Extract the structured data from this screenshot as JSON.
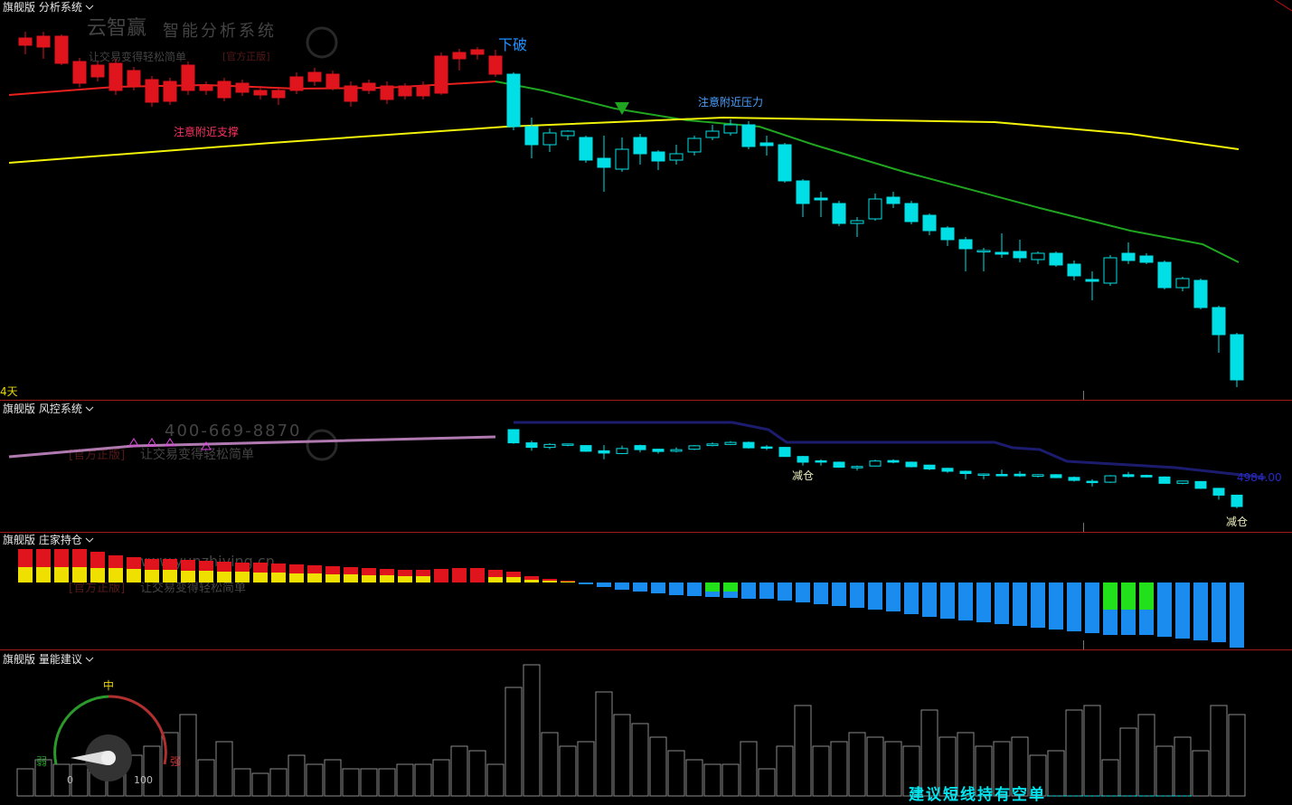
{
  "chart_data": {
    "type": "candlestick",
    "panels": {
      "main": "旗舰版 分析系统",
      "risk": "旗舰版 风控系统",
      "holding": "旗舰版 庄家持仓",
      "volume": "旗舰版 量能建议"
    },
    "period_label": "4天",
    "watermark": {
      "brand": "云智赢",
      "slogan": "智能分析系统",
      "motto": "让交易变得轻松简单",
      "tag": "[官方正版]",
      "phone": "400-669-8870",
      "site": "www.yunzhiying.cn"
    },
    "annotations": {
      "break": "下破",
      "resistance": "注意附近压力",
      "support": "注意附近支撑",
      "reduce": "减仓",
      "risk_value": "4984.00",
      "advice": "建议短线持有空单"
    },
    "gauge": {
      "mid": "中",
      "weak": "弱",
      "strong": "强",
      "min": "0",
      "max": "100"
    },
    "ylim": [
      0,
      440
    ],
    "candle_groups": [
      {
        "color": "#e0141d",
        "x0": 0,
        "hollow_up": false,
        "candles": [
          [
            390,
            405,
            380,
            398
          ],
          [
            388,
            405,
            375,
            400
          ],
          [
            370,
            402,
            368,
            400
          ],
          [
            348,
            376,
            343,
            372
          ],
          [
            355,
            372,
            350,
            368
          ],
          [
            340,
            375,
            335,
            370
          ],
          [
            345,
            366,
            340,
            362
          ],
          [
            327,
            356,
            322,
            352
          ],
          [
            328,
            354,
            324,
            350
          ],
          [
            340,
            372,
            335,
            368
          ],
          [
            340,
            350,
            335,
            345
          ],
          [
            332,
            354,
            328,
            350
          ],
          [
            338,
            352,
            334,
            348
          ],
          [
            335,
            345,
            330,
            340
          ],
          [
            332,
            344,
            324,
            340
          ],
          [
            340,
            360,
            336,
            355
          ],
          [
            350,
            365,
            345,
            360
          ],
          [
            343,
            362,
            340,
            358
          ],
          [
            328,
            350,
            322,
            345
          ],
          [
            340,
            352,
            336,
            348
          ],
          [
            330,
            350,
            325,
            345
          ],
          [
            334,
            348,
            330,
            345
          ],
          [
            334,
            350,
            330,
            345
          ],
          [
            337,
            382,
            335,
            378
          ],
          [
            375,
            386,
            362,
            382
          ],
          [
            380,
            388,
            374,
            385
          ],
          [
            358,
            385,
            355,
            378
          ]
        ]
      },
      {
        "color": "#00dfe6",
        "x0": 27,
        "hollow_up": true,
        "candles": [
          [
            358,
            360,
            296,
            300
          ],
          [
            300,
            310,
            265,
            280
          ],
          [
            280,
            298,
            272,
            293
          ],
          [
            290,
            296,
            285,
            295
          ],
          [
            288,
            290,
            260,
            263
          ],
          [
            265,
            290,
            228,
            255
          ],
          [
            253,
            288,
            250,
            275
          ],
          [
            288,
            292,
            258,
            270
          ],
          [
            272,
            274,
            252,
            262
          ],
          [
            263,
            280,
            258,
            270
          ],
          [
            272,
            290,
            268,
            287
          ],
          [
            288,
            302,
            285,
            295
          ],
          [
            293,
            308,
            290,
            302
          ],
          [
            302,
            306,
            275,
            278
          ],
          [
            282,
            290,
            268,
            279
          ],
          [
            280,
            282,
            238,
            240
          ],
          [
            240,
            242,
            200,
            215
          ],
          [
            221,
            228,
            200,
            219
          ],
          [
            215,
            218,
            190,
            193
          ],
          [
            193,
            200,
            178,
            196
          ],
          [
            198,
            226,
            196,
            220
          ],
          [
            222,
            228,
            210,
            215
          ],
          [
            215,
            218,
            192,
            195
          ],
          [
            202,
            204,
            180,
            185
          ],
          [
            188,
            190,
            168,
            175
          ],
          [
            175,
            178,
            140,
            165
          ],
          [
            162,
            166,
            140,
            163
          ],
          [
            161,
            182,
            155,
            159
          ],
          [
            162,
            175,
            150,
            155
          ],
          [
            153,
            162,
            148,
            160
          ],
          [
            160,
            162,
            145,
            147
          ],
          [
            148,
            152,
            130,
            135
          ],
          [
            131,
            140,
            108,
            129
          ],
          [
            127,
            158,
            124,
            155
          ],
          [
            160,
            172,
            148,
            152
          ],
          [
            157,
            160,
            148,
            150
          ],
          [
            150,
            152,
            120,
            122
          ],
          [
            122,
            134,
            118,
            132
          ],
          [
            130,
            132,
            98,
            100
          ],
          [
            100,
            102,
            50,
            70
          ],
          [
            70,
            72,
            12,
            20
          ]
        ]
      }
    ],
    "lines": [
      {
        "color": "#e8201e",
        "x": [
          -0.9,
          5,
          10,
          15,
          20,
          26
        ],
        "values": [
          335,
          344,
          346,
          342,
          343,
          350
        ]
      },
      {
        "color": "#1fa51f",
        "x": [
          26,
          28.6,
          32.6,
          36.6,
          40.6,
          43.6,
          48.6,
          56.1,
          61.1,
          65.1,
          67.1
        ],
        "values": [
          350,
          340,
          320,
          307,
          300,
          280,
          250,
          210,
          185,
          170,
          150
        ]
      },
      {
        "color": "#f2f20a",
        "x": [
          -0.9,
          13.6,
          26.6,
          38.6,
          53.6,
          61.1,
          67.1
        ],
        "values": [
          260,
          282,
          300,
          310,
          305,
          292,
          275
        ]
      }
    ],
    "risk_ylim": [
      0,
      145
    ],
    "risk_lines": [
      {
        "color": "#1c1c6e",
        "x": [
          27,
          39.1,
          41.1,
          42.1,
          53.6,
          54.6,
          56.1,
          57.6,
          63.6,
          68.6
        ],
        "values": [
          121,
          121,
          113,
          99,
          99,
          93,
          91,
          78,
          71,
          60
        ]
      },
      {
        "color": "#b07ab0",
        "x": [
          -0.9,
          6,
          26
        ],
        "values": [
          83,
          95,
          105
        ]
      }
    ],
    "holding_ylim": [
      -75,
      55
    ],
    "holding_series": [
      {
        "color": "#f0e000",
        "values": [
          17,
          17,
          17,
          17,
          16,
          16,
          15,
          14,
          14,
          13,
          13,
          12,
          12,
          11,
          11,
          10,
          10,
          9,
          9,
          8,
          8,
          7,
          7,
          null,
          null,
          null,
          6,
          6,
          3,
          2,
          1,
          null,
          null,
          null,
          null,
          null,
          null,
          null,
          null,
          null,
          null,
          null,
          null,
          null,
          null,
          null,
          null,
          null,
          null,
          null,
          null,
          null,
          null,
          null,
          null,
          null,
          null,
          null,
          null,
          null,
          null,
          null,
          null,
          null,
          null,
          null,
          null,
          null
        ]
      },
      {
        "color": "#e0141d",
        "values": [
          20,
          20,
          20,
          20,
          18,
          14,
          13,
          12,
          12,
          12,
          11,
          11,
          10,
          11,
          10,
          10,
          9,
          9,
          8,
          8,
          7,
          7,
          7,
          15,
          16,
          16,
          8,
          6,
          4,
          2,
          1,
          null,
          null,
          null,
          null,
          null,
          null,
          null,
          null,
          null,
          null,
          null,
          null,
          null,
          null,
          null,
          null,
          null,
          null,
          null,
          null,
          null,
          null,
          null,
          null,
          null,
          null,
          null,
          null,
          null,
          null,
          null,
          null,
          null,
          null,
          null,
          null,
          null
        ]
      },
      {
        "color": "#22e01a",
        "values": [
          null,
          null,
          null,
          null,
          null,
          null,
          null,
          null,
          null,
          null,
          null,
          null,
          null,
          null,
          null,
          null,
          null,
          null,
          null,
          null,
          null,
          null,
          null,
          null,
          null,
          null,
          null,
          null,
          null,
          null,
          null,
          null,
          null,
          null,
          null,
          null,
          null,
          null,
          -10,
          -10,
          null,
          null,
          null,
          null,
          null,
          null,
          null,
          null,
          null,
          null,
          null,
          null,
          null,
          null,
          null,
          null,
          null,
          null,
          null,
          null,
          -30,
          -30,
          -30,
          null,
          null,
          null,
          null,
          null
        ]
      },
      {
        "color": "#1a8cf0",
        "values": [
          null,
          null,
          null,
          null,
          null,
          null,
          null,
          null,
          null,
          null,
          null,
          null,
          null,
          null,
          null,
          null,
          null,
          null,
          null,
          null,
          null,
          null,
          null,
          null,
          null,
          null,
          null,
          null,
          null,
          null,
          null,
          -2,
          -5,
          -8,
          -10,
          -12,
          -14,
          -15,
          -6,
          -7,
          -18,
          -18,
          -20,
          -22,
          -24,
          -26,
          -28,
          -30,
          -32,
          -35,
          -38,
          -40,
          -42,
          -44,
          -46,
          -48,
          -50,
          -52,
          -54,
          -56,
          -28,
          -28,
          -28,
          -60,
          -62,
          -64,
          -66,
          -72
        ]
      }
    ],
    "volume_ylim": [
      0,
      160
    ],
    "volume_color": "#8a8a8a",
    "volume": [
      30,
      40,
      35,
      35,
      30,
      45,
      45,
      55,
      70,
      90,
      40,
      60,
      30,
      25,
      30,
      45,
      35,
      40,
      30,
      30,
      30,
      35,
      35,
      40,
      55,
      50,
      35,
      120,
      145,
      70,
      55,
      60,
      115,
      90,
      80,
      65,
      50,
      40,
      35,
      35,
      60,
      30,
      55,
      100,
      55,
      60,
      70,
      65,
      60,
      55,
      95,
      65,
      70,
      55,
      60,
      65,
      45,
      50,
      95,
      100,
      40,
      75,
      90,
      55,
      65,
      50,
      100,
      90
    ]
  }
}
